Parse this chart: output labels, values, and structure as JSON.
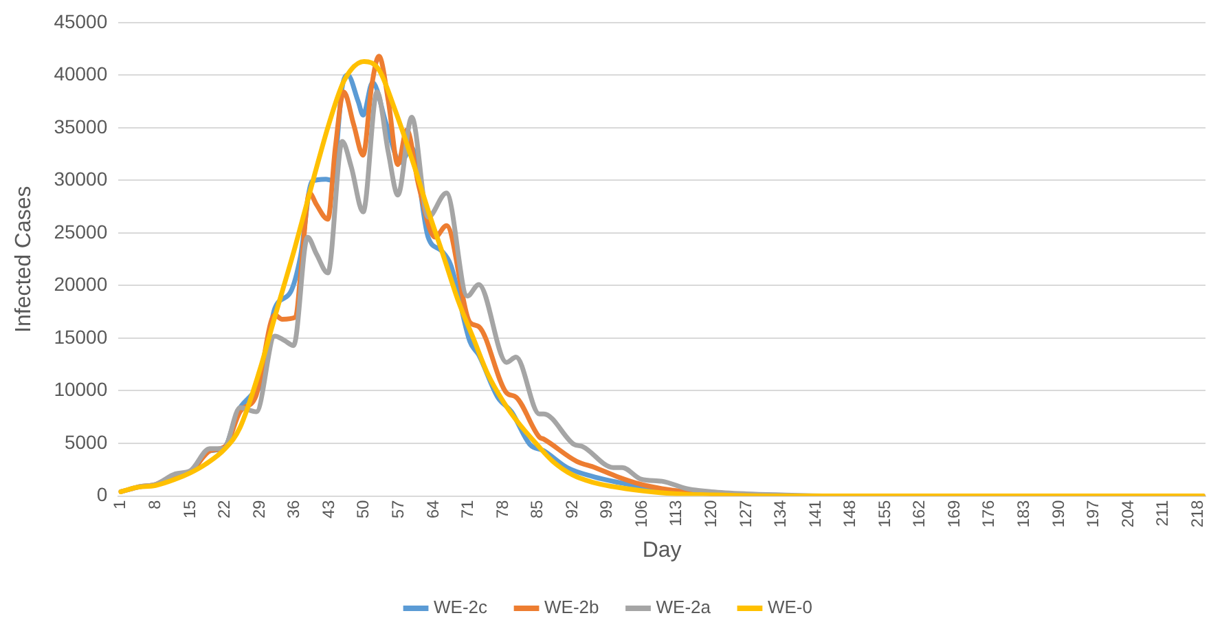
{
  "chart_data": {
    "type": "line",
    "xlabel": "Day",
    "ylabel": "Infected Cases",
    "xlim": [
      0.5,
      219.5
    ],
    "xticks": [
      1,
      8,
      15,
      22,
      29,
      36,
      43,
      50,
      57,
      64,
      71,
      78,
      85,
      92,
      99,
      106,
      113,
      120,
      127,
      134,
      141,
      148,
      155,
      162,
      169,
      176,
      183,
      190,
      197,
      204,
      211,
      218
    ],
    "ylim": [
      0,
      45000
    ],
    "yticks": [
      0,
      5000,
      10000,
      15000,
      20000,
      25000,
      30000,
      35000,
      40000,
      45000
    ],
    "grid": "y",
    "legend": "bottom",
    "marker": "none",
    "line_style": "solid",
    "series": [
      {
        "name": "WE-2c",
        "color": "#5b9bd5",
        "x": [
          19,
          22,
          24.5,
          27.3,
          29.2,
          32,
          35.2,
          37.2,
          39.5,
          42.3,
          43.6,
          45.6,
          46.7,
          48.8,
          49.8,
          51.7,
          54.5,
          57.3,
          59.6,
          62.9,
          65.6,
          67.5,
          71.3,
          73.1,
          76.9,
          79.7,
          83.4,
          86.2,
          90.9,
          96.5,
          105.8,
          110,
          115
        ],
        "values": [
          4300,
          4700,
          8000,
          9600,
          10700,
          17800,
          19400,
          22800,
          29900,
          30100,
          30000,
          38900,
          40000,
          37500,
          36200,
          39300,
          35300,
          31700,
          33100,
          24600,
          23300,
          21900,
          14700,
          13400,
          9400,
          8000,
          4900,
          4300,
          2700,
          1800,
          900,
          600,
          300
        ]
      },
      {
        "name": "WE-2b",
        "color": "#ed7d31",
        "x": [
          1,
          5,
          8,
          12,
          15,
          19,
          22,
          25,
          28.2,
          32,
          33.5,
          36.2,
          37.2,
          39,
          40.4,
          42.7,
          44.2,
          45.9,
          47.9,
          49.8,
          51.5,
          53,
          54.9,
          56.8,
          58.6,
          61,
          64.3,
          66.6,
          71.3,
          73.1,
          78.7,
          80.6,
          85.3,
          86.2,
          92.8,
          96.5,
          101.2,
          105.8,
          110,
          115,
          120,
          130,
          140,
          219
        ],
        "values": [
          400,
          900,
          1100,
          2000,
          2300,
          4300,
          4700,
          8000,
          9500,
          17200,
          16800,
          17000,
          21000,
          28800,
          27700,
          26300,
          33100,
          38400,
          35300,
          32400,
          38900,
          41800,
          37500,
          31500,
          34800,
          29500,
          24600,
          25700,
          16500,
          16100,
          9800,
          9400,
          5600,
          5400,
          3300,
          2700,
          1800,
          1100,
          700,
          400,
          200,
          100,
          0,
          0
        ]
      },
      {
        "name": "WE-2a",
        "color": "#a5a5a5",
        "x": [
          1,
          5,
          8,
          12,
          15,
          18.9,
          21.7,
          25,
          28.3,
          32,
          33.9,
          35.8,
          38.6,
          40.4,
          42.7,
          45.6,
          47.4,
          49.8,
          52.6,
          54.9,
          56.8,
          59.6,
          62.9,
          66.6,
          70.8,
          73.1,
          78.7,
          80.6,
          85.3,
          86.2,
          92.3,
          94,
          100.2,
          102,
          105.8,
          110,
          115,
          120,
          127,
          134,
          145,
          219
        ],
        "values": [
          400,
          900,
          1100,
          2100,
          2400,
          4500,
          4500,
          8400,
          8000,
          15200,
          14800,
          14300,
          24600,
          23000,
          21200,
          33700,
          31300,
          27000,
          38400,
          32600,
          28600,
          36000,
          26500,
          28800,
          19000,
          20100,
          12700,
          13200,
          7800,
          7800,
          4900,
          4700,
          2700,
          2700,
          1600,
          1400,
          700,
          400,
          200,
          100,
          0,
          0
        ]
      },
      {
        "name": "WE-0",
        "color": "#ffc000",
        "x": [
          1,
          4,
          8,
          12,
          15,
          18,
          22,
          25,
          29,
          32,
          36,
          40,
          43,
          46,
          50,
          53,
          56,
          60,
          63,
          66,
          69,
          72,
          75,
          78,
          81,
          85,
          88,
          92,
          96,
          100,
          106,
          113,
          120,
          134,
          150,
          219
        ],
        "values": [
          400,
          800,
          1000,
          1600,
          2200,
          3000,
          4500,
          6500,
          12000,
          17000,
          23500,
          30500,
          35500,
          39500,
          41300,
          40500,
          37000,
          31500,
          27000,
          22800,
          18500,
          15000,
          11500,
          9000,
          7000,
          4800,
          3300,
          2000,
          1300,
          900,
          500,
          200,
          100,
          0,
          0,
          0
        ]
      }
    ]
  }
}
